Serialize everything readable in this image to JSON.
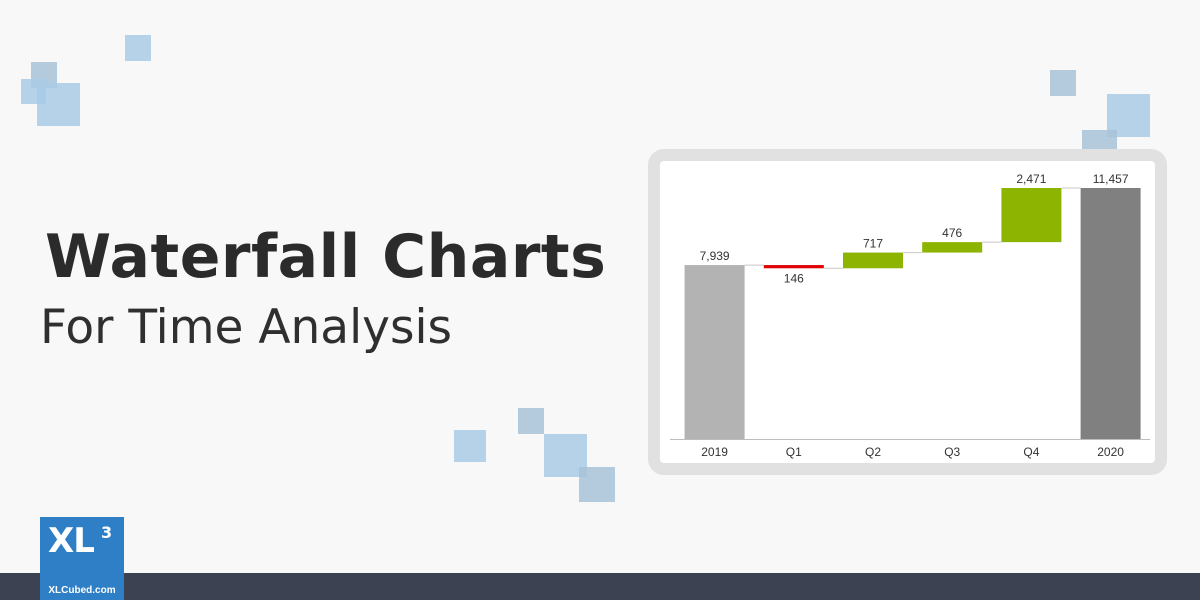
{
  "heading": {
    "title": "Waterfall Charts",
    "subtitle": "For Time Analysis"
  },
  "logo": {
    "mark": "XL",
    "superscript": "3",
    "url": "XLCubed.com"
  },
  "colors": {
    "background": "#f8f8f8",
    "total_start": "#b3b3b3",
    "total_end": "#808080",
    "increase": "#8db400",
    "decrease": "#e00000",
    "connector": "#c8c8c8",
    "footer": "#3d4252",
    "logo": "#2f7fc6",
    "decor_squares": "#a9cbe6"
  },
  "chart_data": {
    "type": "bar",
    "subtype": "waterfall",
    "categories": [
      "2019",
      "Q1",
      "Q2",
      "Q3",
      "Q4",
      "2020"
    ],
    "values": [
      7939,
      -146,
      717,
      476,
      2471,
      11457
    ],
    "kinds": [
      "total",
      "delta",
      "delta",
      "delta",
      "delta",
      "total"
    ],
    "labels": [
      "7,939",
      "146",
      "717",
      "476",
      "2,471",
      "11,457"
    ],
    "title": "",
    "xlabel": "",
    "ylabel": "",
    "ylim": [
      0,
      11457
    ],
    "grid": false,
    "legend": "none"
  }
}
